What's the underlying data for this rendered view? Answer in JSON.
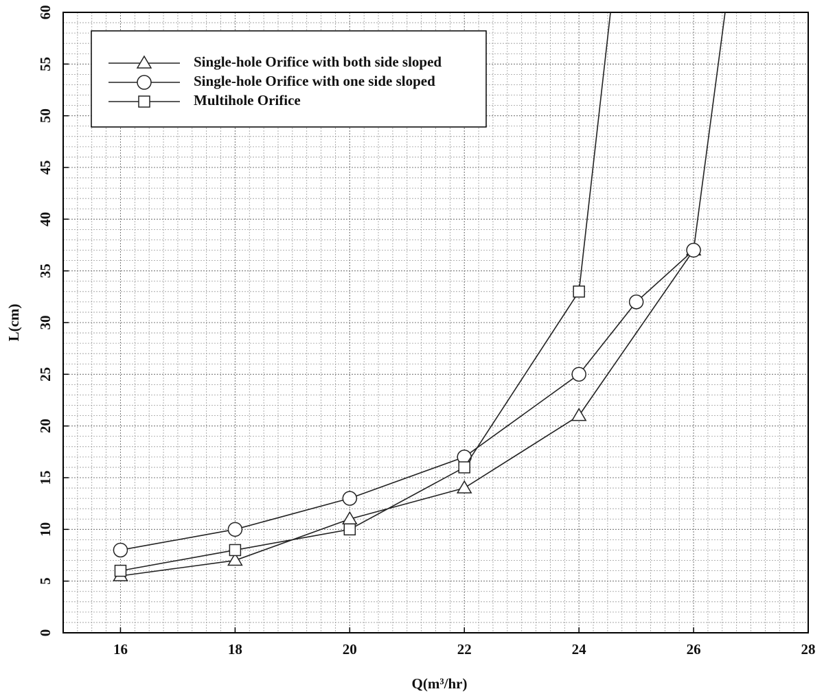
{
  "chart_data": {
    "type": "line",
    "xlabel": "Q(m³/hr)",
    "ylabel": "L(cm)",
    "xlim": [
      15,
      28
    ],
    "xticks": [
      16,
      18,
      20,
      22,
      24,
      26,
      28
    ],
    "ylim": [
      0,
      60
    ],
    "yticks": [
      0,
      5,
      10,
      15,
      20,
      25,
      30,
      35,
      40,
      45,
      50,
      55,
      60
    ],
    "grid": true,
    "legend": "upper left",
    "series": [
      {
        "name": "Single-hole Orifice with both side sloped",
        "color": "#222",
        "marker": "triangle",
        "x": [
          16,
          18,
          20,
          22,
          24,
          26
        ],
        "values": [
          5.5,
          7,
          11,
          14,
          21,
          37
        ]
      },
      {
        "name": "Single-hole Orifice with one side sloped",
        "color": "#222",
        "marker": "circle",
        "x": [
          16,
          18,
          20,
          22,
          24,
          25,
          26,
          26.55
        ],
        "values": [
          8,
          10,
          13,
          17,
          25,
          32,
          37,
          60
        ]
      },
      {
        "name": "Multihole Orifice",
        "color": "#222",
        "marker": "square",
        "x": [
          16,
          18,
          20,
          22,
          24,
          24.55
        ],
        "values": [
          6,
          8,
          10,
          16,
          33,
          60
        ]
      }
    ]
  }
}
